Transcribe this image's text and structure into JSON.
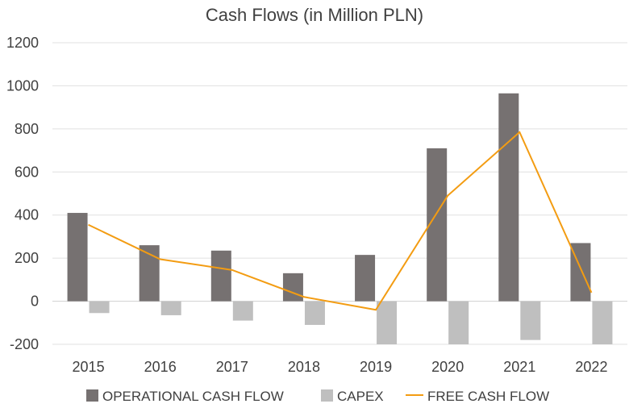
{
  "chart_data": {
    "type": "bar",
    "title": "Cash Flows (in Million PLN)",
    "categories": [
      "2015",
      "2016",
      "2017",
      "2018",
      "2019",
      "2020",
      "2021",
      "2022"
    ],
    "series": [
      {
        "name": "OPERATIONAL CASH FLOW",
        "kind": "bar",
        "color": "#767171",
        "values": [
          410,
          260,
          235,
          130,
          215,
          710,
          965,
          270
        ]
      },
      {
        "name": "CAPEX",
        "kind": "bar",
        "color": "#BFBFBF",
        "values": [
          -55,
          -65,
          -90,
          -110,
          -200,
          -200,
          -180,
          -200
        ]
      },
      {
        "name": "FREE CASH FLOW",
        "kind": "line",
        "color": "#F39C12",
        "values": [
          355,
          195,
          145,
          20,
          -40,
          490,
          785,
          40
        ]
      }
    ],
    "ylim": [
      -200,
      1200
    ],
    "yticks": [
      -200,
      0,
      200,
      400,
      600,
      800,
      1000,
      1200
    ],
    "ytick_labels": [
      "-200",
      "0",
      "200",
      "400",
      "600",
      "800",
      "1000",
      "1200"
    ],
    "grid": true,
    "legend": "bottom",
    "xlabel": "",
    "ylabel": ""
  }
}
